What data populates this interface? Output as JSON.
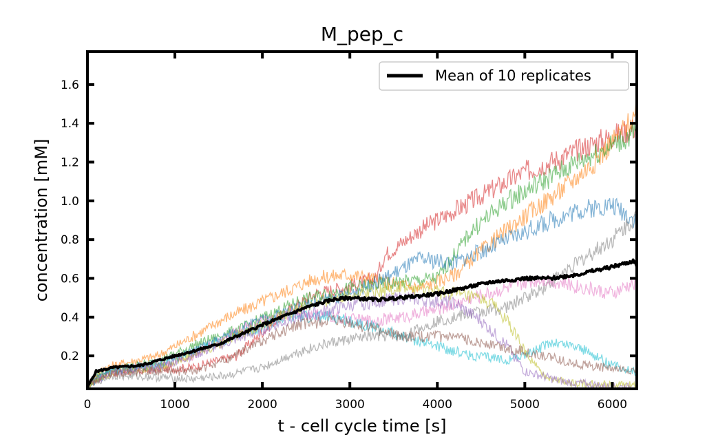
{
  "chart_data": {
    "type": "line",
    "title": "M_pep_c",
    "xlabel": "t - cell cycle time [s]",
    "ylabel": "concentration [mM]",
    "xlim": [
      0,
      6280
    ],
    "ylim": [
      0.03,
      1.77
    ],
    "x_ticks": [
      "0",
      "1000",
      "2000",
      "3000",
      "4000",
      "5000",
      "6000"
    ],
    "y_ticks": [
      "0.2",
      "0.4",
      "0.6",
      "0.8",
      "1.0",
      "1.2",
      "1.4",
      "1.6"
    ],
    "grid": false,
    "legend": {
      "position": "top-right",
      "entries": [
        "Mean of 10 replicates"
      ]
    },
    "mean_series": {
      "name": "Mean of 10 replicates",
      "color": "#000000",
      "points": [
        [
          0,
          0.04
        ],
        [
          100,
          0.12
        ],
        [
          300,
          0.14
        ],
        [
          600,
          0.15
        ],
        [
          1000,
          0.2
        ],
        [
          1500,
          0.26
        ],
        [
          2000,
          0.36
        ],
        [
          2500,
          0.45
        ],
        [
          2800,
          0.49
        ],
        [
          3000,
          0.5
        ],
        [
          3300,
          0.49
        ],
        [
          3600,
          0.5
        ],
        [
          4000,
          0.52
        ],
        [
          4300,
          0.55
        ],
        [
          4600,
          0.58
        ],
        [
          5000,
          0.6
        ],
        [
          5300,
          0.6
        ],
        [
          5600,
          0.62
        ],
        [
          6000,
          0.66
        ],
        [
          6250,
          0.69
        ],
        [
          6280,
          0.66
        ]
      ]
    },
    "replicate_series": [
      {
        "color": "#d62728",
        "points": [
          [
            0,
            0.05
          ],
          [
            200,
            0.11
          ],
          [
            800,
            0.13
          ],
          [
            1200,
            0.14
          ],
          [
            1700,
            0.2
          ],
          [
            2200,
            0.4
          ],
          [
            2600,
            0.52
          ],
          [
            3000,
            0.56
          ],
          [
            3300,
            0.6
          ],
          [
            3400,
            0.72
          ],
          [
            3800,
            0.85
          ],
          [
            4200,
            0.95
          ],
          [
            4600,
            1.05
          ],
          [
            5000,
            1.15
          ],
          [
            5400,
            1.22
          ],
          [
            5800,
            1.3
          ],
          [
            6280,
            1.38
          ]
        ]
      },
      {
        "color": "#ff7f0e",
        "points": [
          [
            0,
            0.05
          ],
          [
            200,
            0.14
          ],
          [
            800,
            0.2
          ],
          [
            1200,
            0.3
          ],
          [
            1600,
            0.4
          ],
          [
            2000,
            0.48
          ],
          [
            2600,
            0.6
          ],
          [
            3000,
            0.62
          ],
          [
            3400,
            0.58
          ],
          [
            3800,
            0.55
          ],
          [
            4200,
            0.62
          ],
          [
            4600,
            0.78
          ],
          [
            5000,
            0.92
          ],
          [
            5400,
            1.05
          ],
          [
            5800,
            1.2
          ],
          [
            6280,
            1.45
          ]
        ]
      },
      {
        "color": "#2ca02c",
        "points": [
          [
            0,
            0.05
          ],
          [
            200,
            0.12
          ],
          [
            800,
            0.17
          ],
          [
            1200,
            0.25
          ],
          [
            1800,
            0.35
          ],
          [
            2400,
            0.48
          ],
          [
            3000,
            0.55
          ],
          [
            3600,
            0.58
          ],
          [
            4000,
            0.6
          ],
          [
            4400,
            0.85
          ],
          [
            4800,
            1.0
          ],
          [
            5200,
            1.1
          ],
          [
            5600,
            1.2
          ],
          [
            6280,
            1.35
          ]
        ]
      },
      {
        "color": "#1f77b4",
        "points": [
          [
            0,
            0.05
          ],
          [
            200,
            0.12
          ],
          [
            800,
            0.16
          ],
          [
            1200,
            0.22
          ],
          [
            1800,
            0.35
          ],
          [
            2400,
            0.45
          ],
          [
            3000,
            0.52
          ],
          [
            3400,
            0.6
          ],
          [
            3800,
            0.7
          ],
          [
            4200,
            0.68
          ],
          [
            4400,
            0.72
          ],
          [
            4800,
            0.8
          ],
          [
            5200,
            0.88
          ],
          [
            5600,
            0.95
          ],
          [
            6000,
            0.98
          ],
          [
            6280,
            0.9
          ]
        ]
      },
      {
        "color": "#7f7f7f",
        "points": [
          [
            0,
            0.05
          ],
          [
            300,
            0.1
          ],
          [
            800,
            0.09
          ],
          [
            1200,
            0.08
          ],
          [
            1600,
            0.1
          ],
          [
            2000,
            0.14
          ],
          [
            2400,
            0.22
          ],
          [
            2800,
            0.27
          ],
          [
            3200,
            0.3
          ],
          [
            3600,
            0.3
          ],
          [
            4000,
            0.38
          ],
          [
            4400,
            0.42
          ],
          [
            4800,
            0.45
          ],
          [
            5200,
            0.55
          ],
          [
            5600,
            0.68
          ],
          [
            6000,
            0.8
          ],
          [
            6280,
            0.92
          ]
        ]
      },
      {
        "color": "#e377c2",
        "points": [
          [
            0,
            0.05
          ],
          [
            300,
            0.12
          ],
          [
            800,
            0.15
          ],
          [
            1200,
            0.2
          ],
          [
            1800,
            0.35
          ],
          [
            2400,
            0.42
          ],
          [
            2800,
            0.4
          ],
          [
            3200,
            0.38
          ],
          [
            3600,
            0.4
          ],
          [
            4000,
            0.44
          ],
          [
            4400,
            0.5
          ],
          [
            4800,
            0.55
          ],
          [
            5200,
            0.6
          ],
          [
            5600,
            0.56
          ],
          [
            6000,
            0.52
          ],
          [
            6280,
            0.58
          ]
        ]
      },
      {
        "color": "#17becf",
        "points": [
          [
            0,
            0.05
          ],
          [
            300,
            0.12
          ],
          [
            800,
            0.15
          ],
          [
            1200,
            0.22
          ],
          [
            1800,
            0.32
          ],
          [
            2300,
            0.4
          ],
          [
            2800,
            0.4
          ],
          [
            3200,
            0.36
          ],
          [
            3600,
            0.3
          ],
          [
            4000,
            0.25
          ],
          [
            4400,
            0.2
          ],
          [
            4800,
            0.18
          ],
          [
            5100,
            0.22
          ],
          [
            5300,
            0.27
          ],
          [
            5600,
            0.25
          ],
          [
            6000,
            0.15
          ],
          [
            6280,
            0.12
          ]
        ]
      },
      {
        "color": "#bcbd22",
        "points": [
          [
            0,
            0.05
          ],
          [
            300,
            0.12
          ],
          [
            800,
            0.14
          ],
          [
            1200,
            0.2
          ],
          [
            1800,
            0.32
          ],
          [
            2400,
            0.44
          ],
          [
            3000,
            0.52
          ],
          [
            3600,
            0.55
          ],
          [
            4200,
            0.52
          ],
          [
            4600,
            0.48
          ],
          [
            4800,
            0.38
          ],
          [
            5000,
            0.22
          ],
          [
            5200,
            0.1
          ],
          [
            5500,
            0.06
          ],
          [
            6000,
            0.05
          ],
          [
            6280,
            0.05
          ]
        ]
      },
      {
        "color": "#9467bd",
        "points": [
          [
            0,
            0.05
          ],
          [
            300,
            0.12
          ],
          [
            800,
            0.14
          ],
          [
            1200,
            0.2
          ],
          [
            1800,
            0.3
          ],
          [
            2400,
            0.4
          ],
          [
            3000,
            0.46
          ],
          [
            3600,
            0.5
          ],
          [
            4200,
            0.47
          ],
          [
            4500,
            0.38
          ],
          [
            4800,
            0.25
          ],
          [
            5000,
            0.12
          ],
          [
            5400,
            0.07
          ],
          [
            6000,
            0.04
          ],
          [
            6280,
            0.04
          ]
        ]
      },
      {
        "color": "#8c564b",
        "points": [
          [
            0,
            0.05
          ],
          [
            300,
            0.11
          ],
          [
            800,
            0.12
          ],
          [
            1200,
            0.12
          ],
          [
            1600,
            0.18
          ],
          [
            2000,
            0.28
          ],
          [
            2400,
            0.36
          ],
          [
            2800,
            0.38
          ],
          [
            3200,
            0.35
          ],
          [
            3600,
            0.3
          ],
          [
            4000,
            0.3
          ],
          [
            4400,
            0.28
          ],
          [
            4800,
            0.24
          ],
          [
            5200,
            0.2
          ],
          [
            5600,
            0.16
          ],
          [
            6000,
            0.13
          ],
          [
            6280,
            0.12
          ]
        ]
      }
    ]
  }
}
